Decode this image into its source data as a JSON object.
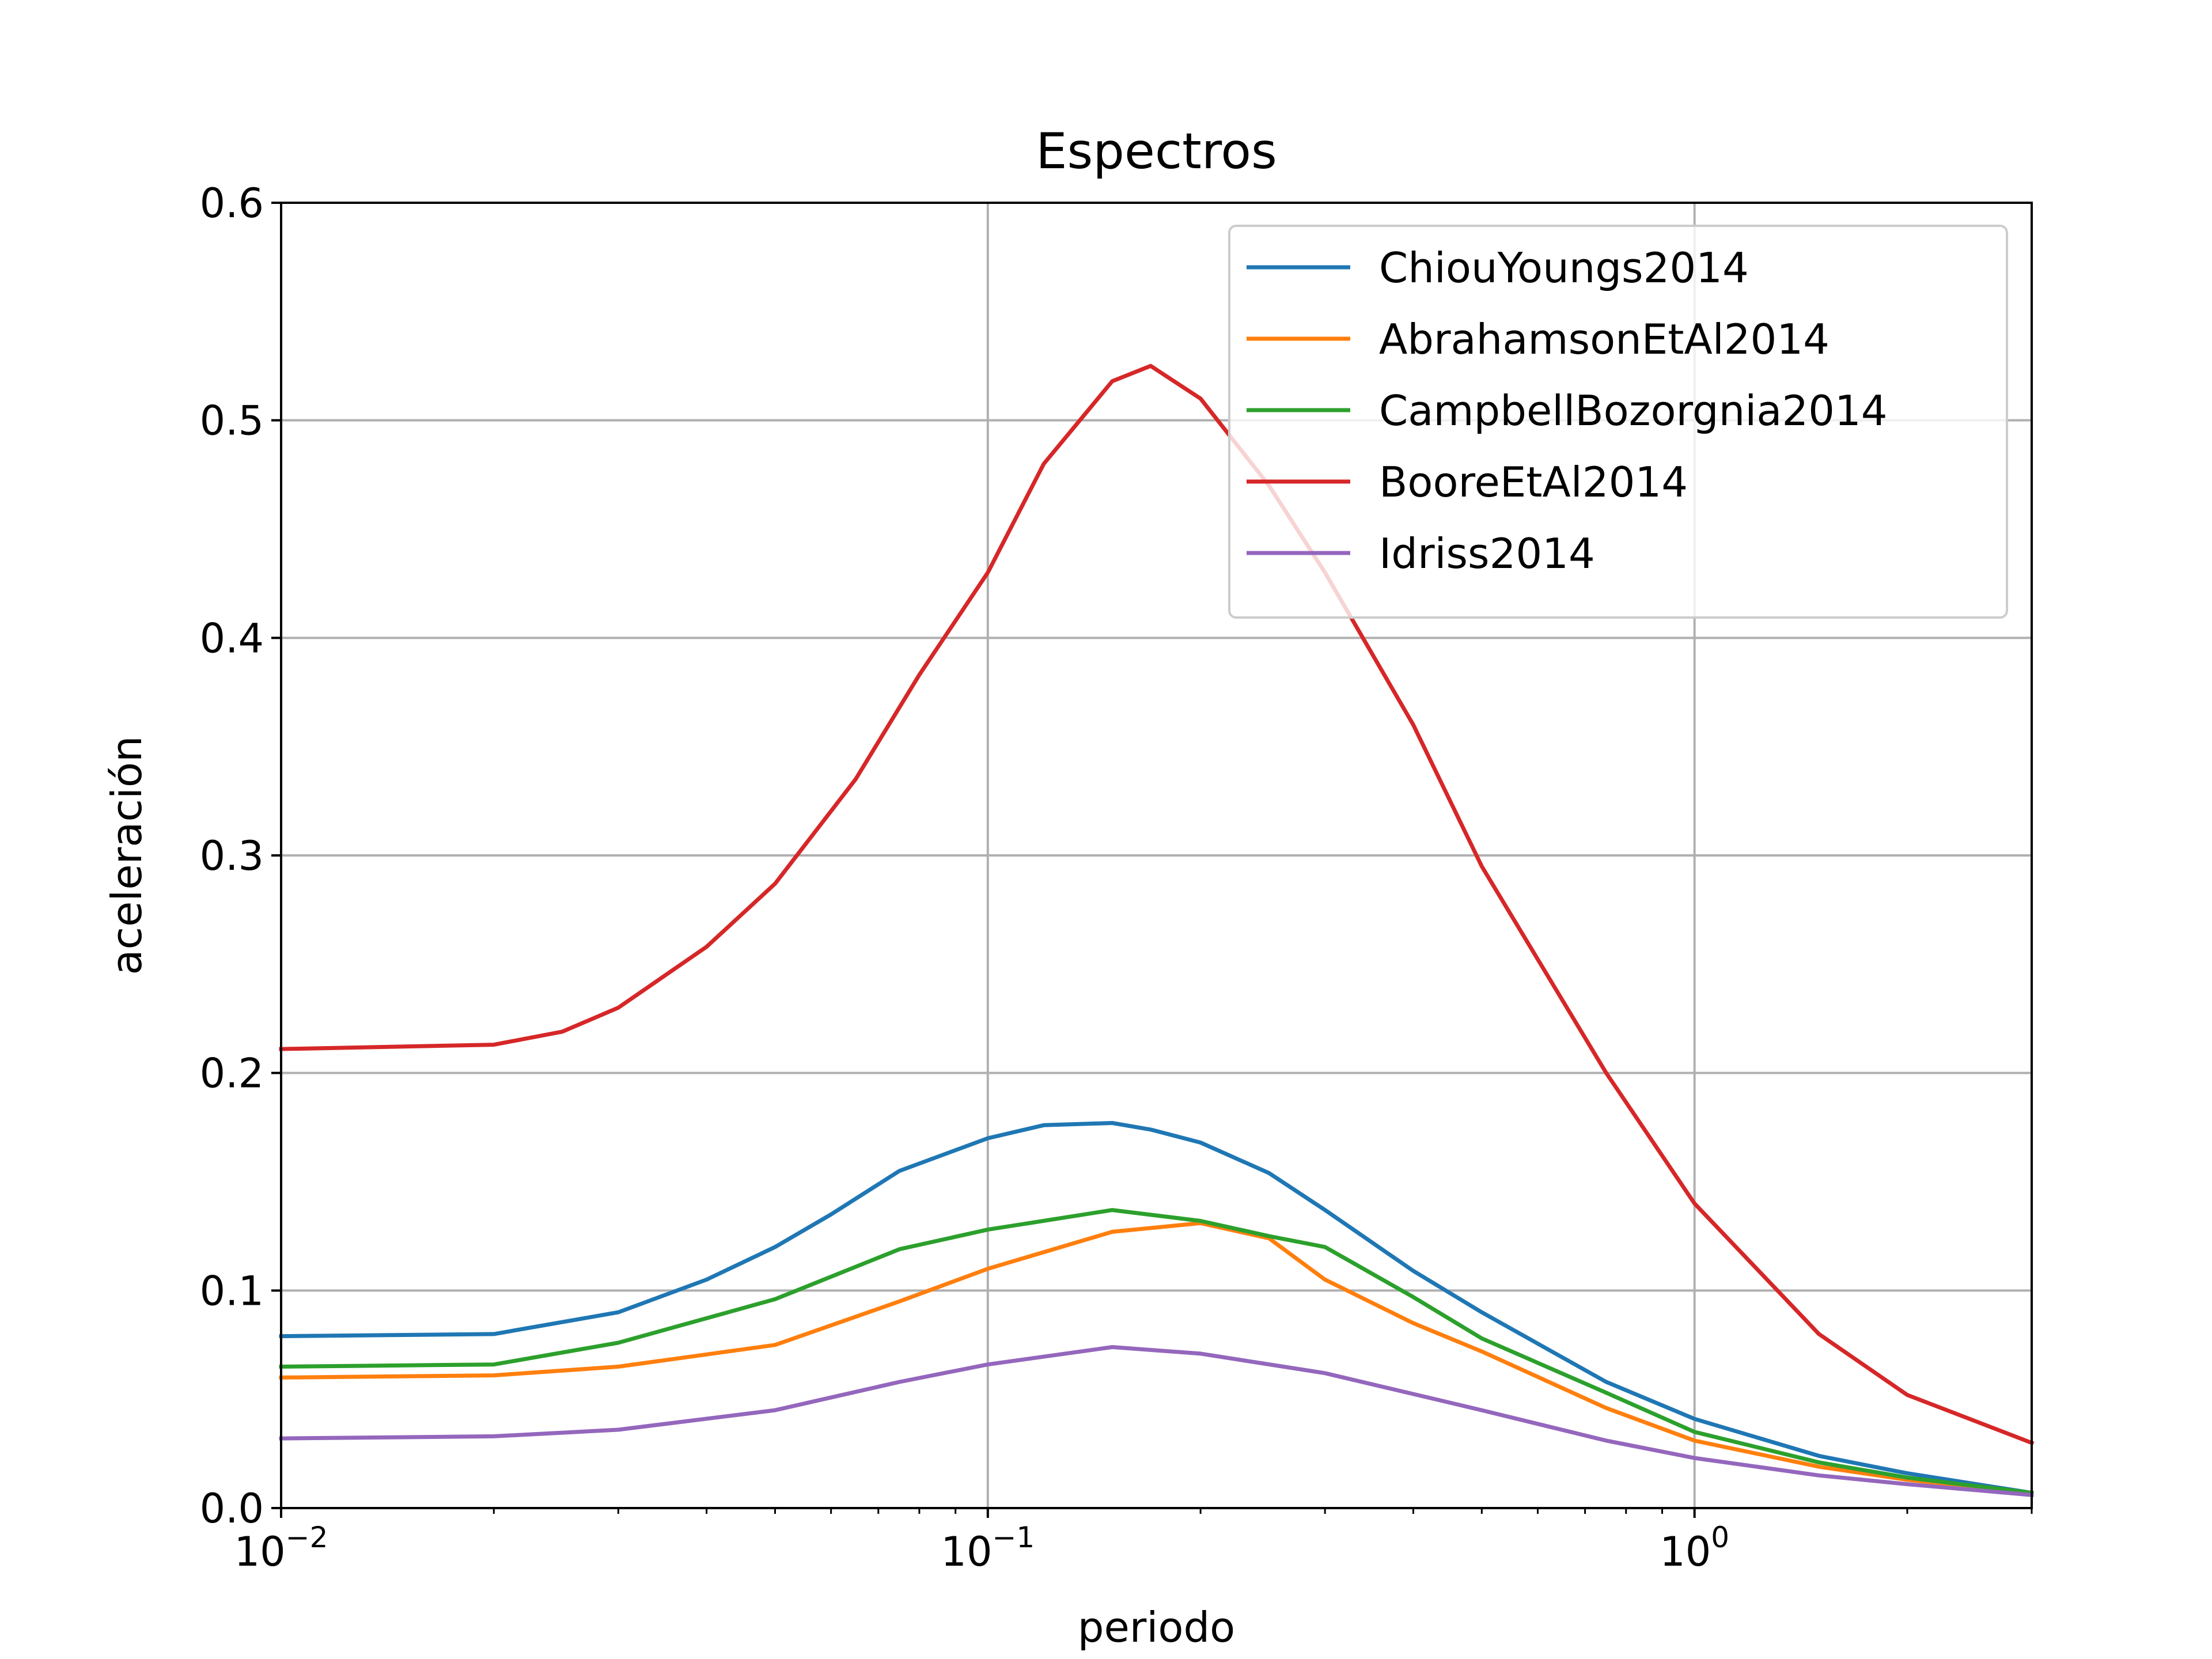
{
  "chart_data": {
    "type": "line",
    "title": "Espectros",
    "xlabel": "periodo",
    "ylabel": "aceleración",
    "xscale": "log",
    "xlim": [
      0.01,
      3.0
    ],
    "ylim": [
      0,
      0.6
    ],
    "grid": true,
    "legend_position": "top-right",
    "yticks": [
      "0.0",
      "0.1",
      "0.2",
      "0.3",
      "0.4",
      "0.5",
      "0.6"
    ],
    "xticks": [
      {
        "value": 0.01,
        "base": "10",
        "exp": "−2"
      },
      {
        "value": 0.1,
        "base": "10",
        "exp": "−1"
      },
      {
        "value": 1,
        "base": "10",
        "exp": "0"
      }
    ],
    "series": [
      {
        "name": "ChiouYoungs2014",
        "color": "#1f77b4",
        "x": [
          0.01,
          0.02,
          0.03,
          0.04,
          0.05,
          0.06,
          0.075,
          0.1,
          0.12,
          0.15,
          0.17,
          0.2,
          0.25,
          0.3,
          0.4,
          0.5,
          0.75,
          1.0,
          1.5,
          2.0,
          3.0
        ],
        "y": [
          0.079,
          0.08,
          0.09,
          0.105,
          0.12,
          0.135,
          0.155,
          0.17,
          0.176,
          0.177,
          0.174,
          0.168,
          0.154,
          0.137,
          0.109,
          0.09,
          0.058,
          0.041,
          0.024,
          0.016,
          0.007
        ]
      },
      {
        "name": "AbrahamsonEtAl2014",
        "color": "#ff7f0e",
        "x": [
          0.01,
          0.02,
          0.03,
          0.05,
          0.075,
          0.1,
          0.15,
          0.2,
          0.25,
          0.3,
          0.4,
          0.5,
          0.75,
          1.0,
          1.5,
          2.0,
          3.0
        ],
        "y": [
          0.06,
          0.061,
          0.065,
          0.075,
          0.095,
          0.11,
          0.127,
          0.131,
          0.124,
          0.105,
          0.085,
          0.072,
          0.046,
          0.031,
          0.019,
          0.013,
          0.007
        ]
      },
      {
        "name": "CampbellBozorgnia2014",
        "color": "#2ca02c",
        "x": [
          0.01,
          0.02,
          0.03,
          0.05,
          0.075,
          0.1,
          0.15,
          0.2,
          0.25,
          0.3,
          0.4,
          0.5,
          0.75,
          1.0,
          1.5,
          2.0,
          3.0
        ],
        "y": [
          0.065,
          0.066,
          0.076,
          0.096,
          0.119,
          0.128,
          0.137,
          0.132,
          0.125,
          0.12,
          0.097,
          0.078,
          0.053,
          0.035,
          0.021,
          0.014,
          0.007
        ]
      },
      {
        "name": "BooreEtAl2014",
        "color": "#d62728",
        "x": [
          0.01,
          0.02,
          0.025,
          0.03,
          0.04,
          0.05,
          0.065,
          0.08,
          0.1,
          0.12,
          0.15,
          0.17,
          0.2,
          0.25,
          0.3,
          0.4,
          0.5,
          0.75,
          1.0,
          1.5,
          2.0,
          3.0
        ],
        "y": [
          0.211,
          0.213,
          0.219,
          0.23,
          0.258,
          0.287,
          0.335,
          0.383,
          0.43,
          0.48,
          0.518,
          0.525,
          0.51,
          0.47,
          0.43,
          0.36,
          0.295,
          0.2,
          0.14,
          0.08,
          0.052,
          0.03
        ]
      },
      {
        "name": "Idriss2014",
        "color": "#9467bd",
        "x": [
          0.01,
          0.02,
          0.03,
          0.05,
          0.075,
          0.1,
          0.15,
          0.2,
          0.3,
          0.5,
          0.75,
          1.0,
          1.5,
          2.0,
          3.0
        ],
        "y": [
          0.032,
          0.033,
          0.036,
          0.045,
          0.058,
          0.066,
          0.074,
          0.071,
          0.062,
          0.045,
          0.031,
          0.023,
          0.015,
          0.011,
          0.006
        ]
      }
    ]
  }
}
